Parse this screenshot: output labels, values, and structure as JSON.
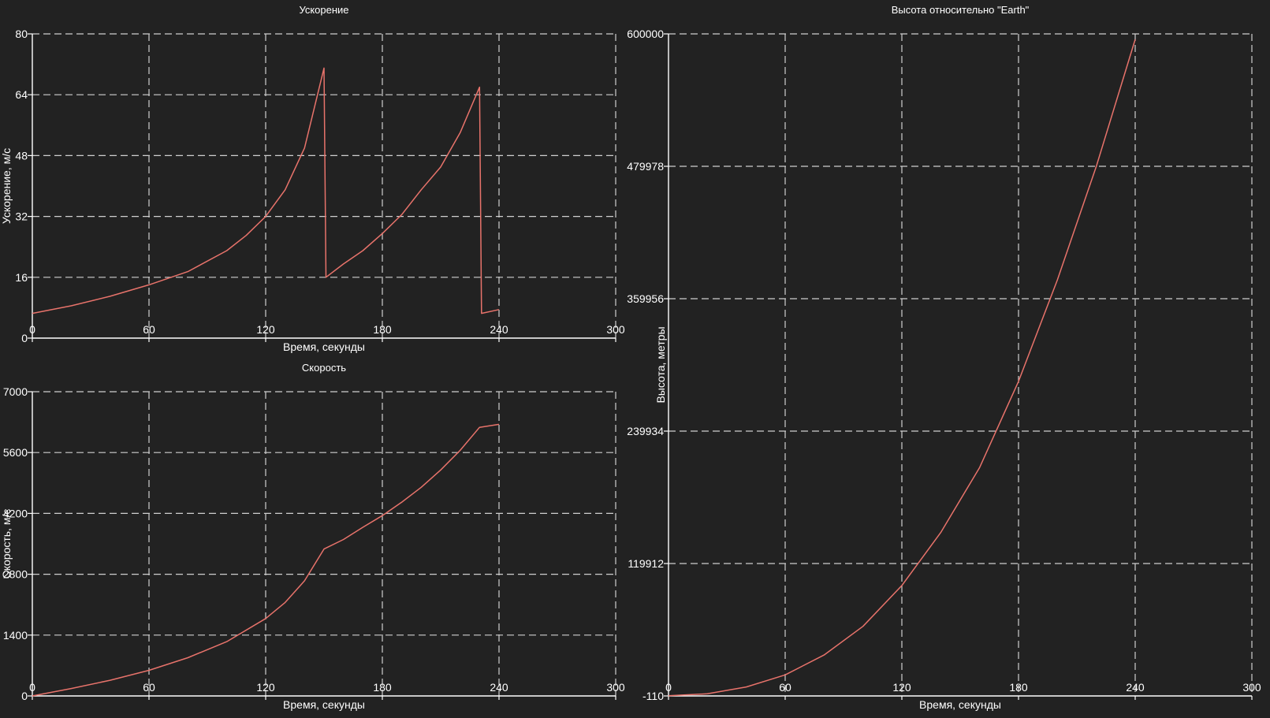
{
  "colors": {
    "background": "#222222",
    "axis": "#ffffff",
    "grid": "#cfcfcf",
    "text": "#ffffff",
    "series": "#e8736b"
  },
  "chart_data": [
    {
      "type": "line",
      "title": "Ускорение",
      "xlabel": "Время, секунды",
      "ylabel": "Ускорение, м/с",
      "xlim": [
        0,
        300
      ],
      "ylim": [
        0,
        80
      ],
      "xticks": [
        0,
        60,
        120,
        180,
        240,
        300
      ],
      "yticks": [
        0,
        16,
        32,
        48,
        64,
        80
      ],
      "xtick_labels": [
        "0",
        "60",
        "120",
        "180",
        "240",
        "300"
      ],
      "ytick_labels": [
        "0",
        "16",
        "32",
        "48",
        "64",
        "80"
      ],
      "grid": true,
      "series": [
        {
          "x": [
            0,
            20,
            40,
            60,
            80,
            100,
            110,
            120,
            130,
            140,
            150,
            151,
            160,
            170,
            180,
            190,
            200,
            210,
            220,
            230,
            231,
            240
          ],
          "y": [
            6.5,
            8.5,
            11,
            14,
            17.5,
            23,
            27,
            32,
            39,
            50,
            71,
            16,
            19.5,
            23,
            27.5,
            32.5,
            39,
            45,
            54,
            66,
            6.5,
            7.5
          ]
        }
      ]
    },
    {
      "type": "line",
      "title": "Скорость",
      "xlabel": "Время, секунды",
      "ylabel": "Скорость, м/с",
      "xlim": [
        0,
        300
      ],
      "ylim": [
        0,
        7000
      ],
      "xticks": [
        0,
        60,
        120,
        180,
        240,
        300
      ],
      "yticks": [
        0,
        1400,
        2800,
        4200,
        5600,
        7000
      ],
      "xtick_labels": [
        "0",
        "60",
        "120",
        "180",
        "240",
        "300"
      ],
      "ytick_labels": [
        "0",
        "1400",
        "2800",
        "4200",
        "5600",
        "7000"
      ],
      "grid": true,
      "series": [
        {
          "x": [
            0,
            20,
            40,
            60,
            80,
            100,
            120,
            130,
            140,
            150,
            160,
            170,
            180,
            190,
            200,
            210,
            220,
            230,
            240
          ],
          "y": [
            0,
            170,
            360,
            590,
            880,
            1250,
            1780,
            2150,
            2650,
            3380,
            3600,
            3880,
            4150,
            4460,
            4800,
            5200,
            5650,
            6180,
            6250
          ]
        }
      ]
    },
    {
      "type": "line",
      "title": "Высота относительно \"Earth\"",
      "xlabel": "Время, секунды",
      "ylabel": "Высота, метры",
      "xlim": [
        0,
        300
      ],
      "ylim": [
        -110,
        600000
      ],
      "xticks": [
        0,
        60,
        120,
        180,
        240,
        300
      ],
      "yticks": [
        -110,
        119912,
        239934,
        359956,
        479978,
        600000
      ],
      "xtick_labels": [
        "0",
        "60",
        "120",
        "180",
        "240",
        "300"
      ],
      "ytick_labels": [
        "-110",
        "119912",
        "239934",
        "359956",
        "479978",
        "600000"
      ],
      "grid": true,
      "series": [
        {
          "x": [
            0,
            20,
            40,
            60,
            80,
            100,
            120,
            140,
            160,
            180,
            200,
            220,
            240
          ],
          "y": [
            0,
            1800,
            8000,
            19000,
            37000,
            63000,
            100000,
            148000,
            207000,
            285000,
            377000,
            480000,
            595000
          ]
        }
      ]
    }
  ]
}
